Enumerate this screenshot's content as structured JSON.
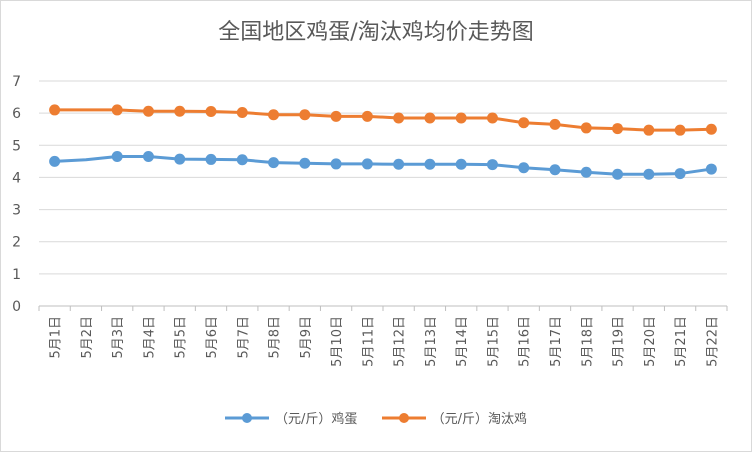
{
  "chart_data": {
    "type": "line",
    "title": "全国地区鸡蛋/淘汰鸡均价走势图",
    "xlabel": "",
    "ylabel": "",
    "categories": [
      "5月1日",
      "5月2日",
      "5月3日",
      "5月4日",
      "5月5日",
      "5月6日",
      "5月7日",
      "5月8日",
      "5月9日",
      "5月10日",
      "5月11日",
      "5月12日",
      "5月13日",
      "5月14日",
      "5月15日",
      "5月16日",
      "5月17日",
      "5月18日",
      "5月19日",
      "5月20日",
      "5月21日",
      "5月22日"
    ],
    "points_at": [
      0,
      2,
      3,
      4,
      5,
      6,
      7,
      8,
      9,
      10,
      11,
      12,
      13,
      14,
      15,
      16,
      17,
      18,
      19,
      20,
      21
    ],
    "series": [
      {
        "name": "（元/斤）鸡蛋",
        "color": "#5b9bd5",
        "values": [
          4.5,
          4.55,
          4.65,
          4.65,
          4.57,
          4.56,
          4.55,
          4.46,
          4.44,
          4.42,
          4.42,
          4.41,
          4.41,
          4.41,
          4.4,
          4.3,
          4.24,
          4.16,
          4.1,
          4.1,
          4.12,
          4.26
        ]
      },
      {
        "name": "（元/斤）淘汰鸡",
        "color": "#ed7d31",
        "values": [
          6.1,
          6.1,
          6.1,
          6.06,
          6.06,
          6.05,
          6.02,
          5.95,
          5.95,
          5.9,
          5.9,
          5.85,
          5.85,
          5.85,
          5.85,
          5.7,
          5.65,
          5.54,
          5.52,
          5.47,
          5.47,
          5.5
        ]
      }
    ],
    "ylim": [
      0,
      7
    ],
    "yticks": [
      0,
      1,
      2,
      3,
      4,
      5,
      6,
      7
    ],
    "grid": true,
    "legend_position": "bottom"
  }
}
